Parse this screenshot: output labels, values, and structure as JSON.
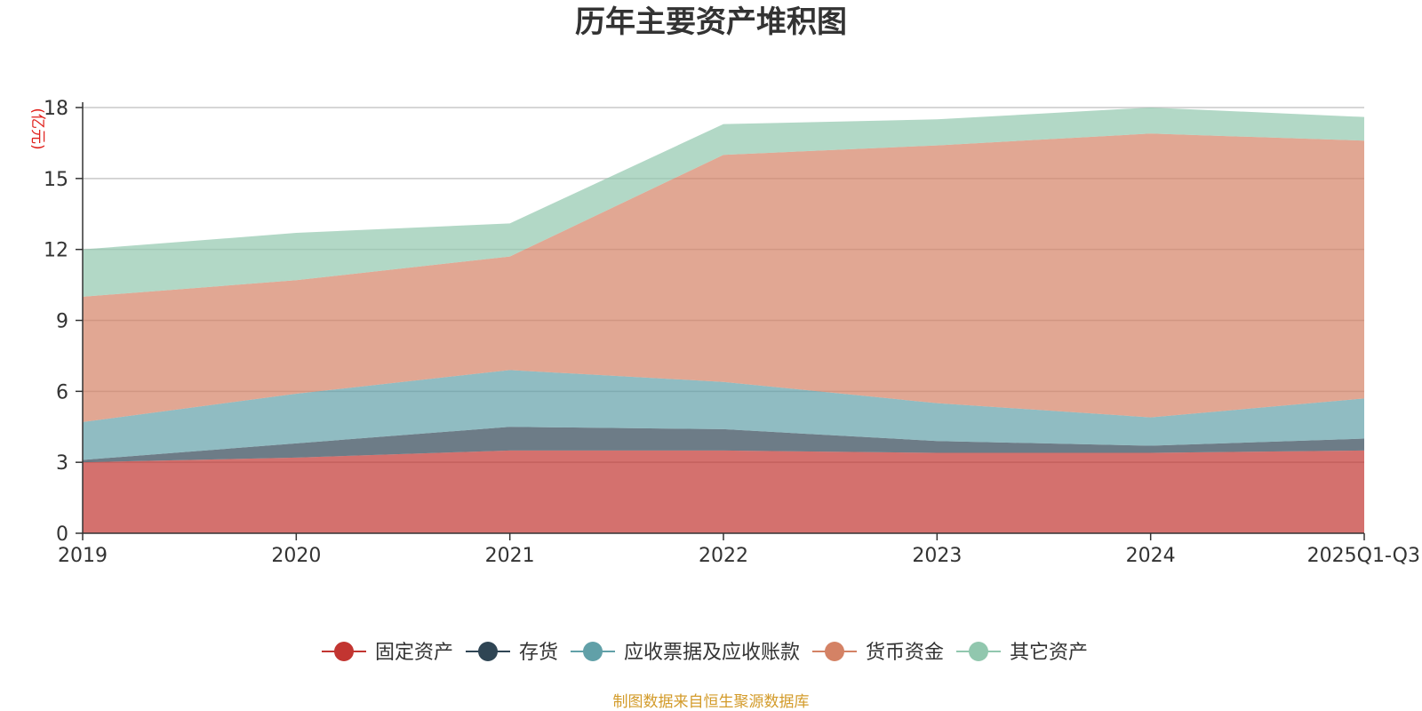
{
  "chart_data": {
    "type": "area",
    "stacked": true,
    "title": "历年主要资产堆积图",
    "ylabel": "(亿元)",
    "xlabel": "",
    "categories": [
      "2019",
      "2020",
      "2021",
      "2022",
      "2023",
      "2024",
      "2025Q1-Q3"
    ],
    "ylim": [
      0,
      18
    ],
    "yticks": [
      0,
      3,
      6,
      9,
      12,
      15,
      18
    ],
    "grid": true,
    "legend_position": "bottom",
    "series": [
      {
        "name": "固定资产",
        "color": "#c23531",
        "values": [
          3.0,
          3.2,
          3.5,
          3.5,
          3.4,
          3.4,
          3.5
        ]
      },
      {
        "name": "存货",
        "color": "#2f4554",
        "values": [
          0.1,
          0.6,
          1.0,
          0.9,
          0.5,
          0.3,
          0.5
        ]
      },
      {
        "name": "应收票据及应收账款",
        "color": "#61a0a8",
        "values": [
          1.6,
          2.1,
          2.4,
          2.0,
          1.6,
          1.2,
          1.7
        ]
      },
      {
        "name": "货币资金",
        "color": "#d48265",
        "values": [
          5.3,
          4.8,
          4.8,
          9.6,
          10.9,
          12.0,
          10.9
        ]
      },
      {
        "name": "其它资产",
        "color": "#91c7ae",
        "values": [
          2.0,
          2.0,
          1.4,
          1.3,
          1.1,
          1.1,
          1.0
        ]
      }
    ],
    "source": "制图数据来自恒生聚源数据库"
  }
}
